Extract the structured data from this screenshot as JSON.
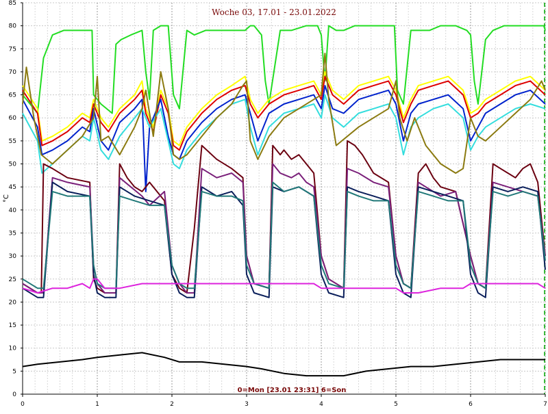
{
  "chart_data": {
    "type": "line",
    "title": "Woche 03, 17.01 - 23.01.2022",
    "footer": "0=Mon [23.01 23:31] 6=Son",
    "ylabel": "°C",
    "xlim": [
      0,
      7
    ],
    "ylim": [
      0,
      85
    ],
    "x_ticks": [
      "0",
      "1",
      "2",
      "3",
      "4",
      "5",
      "6",
      "7"
    ],
    "y_ticks": [
      "0",
      "5",
      "10",
      "15",
      "20",
      "25",
      "30",
      "35",
      "40",
      "45",
      "50",
      "55",
      "60",
      "65",
      "70",
      "75",
      "80",
      "85"
    ],
    "grid": true,
    "end_marker_x": 7,
    "series": [
      {
        "color": "#22dd22",
        "x": [
          0,
          0.1,
          0.2,
          0.28,
          0.4,
          0.55,
          0.7,
          0.85,
          0.93,
          0.95,
          1.05,
          1.2,
          1.25,
          1.32,
          1.45,
          1.6,
          1.65,
          1.7,
          1.75,
          1.85,
          1.95,
          2.02,
          2.1,
          2.2,
          2.3,
          2.45,
          2.6,
          2.8,
          2.98,
          3.05,
          3.1,
          3.2,
          3.25,
          3.3,
          3.45,
          3.6,
          3.8,
          3.95,
          4.0,
          4.05,
          4.1,
          4.2,
          4.3,
          4.45,
          4.6,
          4.8,
          4.98,
          5.02,
          5.1,
          5.2,
          5.3,
          5.45,
          5.6,
          5.8,
          5.95,
          6.0,
          6.05,
          6.1,
          6.2,
          6.3,
          6.45,
          6.6,
          6.8,
          6.98,
          7.0
        ],
        "values": [
          65,
          63,
          61,
          73,
          78,
          79,
          79,
          79,
          79,
          65,
          63,
          61,
          76,
          77,
          78,
          79,
          70,
          64,
          79,
          80,
          80,
          65,
          62,
          79,
          78,
          79,
          79,
          79,
          79,
          80,
          80,
          78,
          68,
          63,
          79,
          79,
          80,
          80,
          78,
          68,
          80,
          79,
          79,
          80,
          80,
          80,
          80,
          66,
          63,
          79,
          79,
          79,
          80,
          80,
          79,
          78,
          68,
          63,
          77,
          79,
          80,
          80,
          80,
          80,
          79
        ]
      },
      {
        "color": "#ffff00",
        "x": [
          0,
          0.2,
          0.26,
          0.4,
          0.6,
          0.8,
          0.9,
          0.95,
          1.05,
          1.15,
          1.3,
          1.5,
          1.6,
          1.65,
          1.75,
          1.85,
          1.95,
          2.02,
          2.1,
          2.2,
          2.4,
          2.6,
          2.8,
          2.98,
          3.05,
          3.15,
          3.3,
          3.5,
          3.7,
          3.9,
          4.0,
          4.05,
          4.15,
          4.3,
          4.5,
          4.7,
          4.9,
          5.0,
          5.1,
          5.2,
          5.3,
          5.5,
          5.7,
          5.9,
          6.0,
          6.1,
          6.2,
          6.4,
          6.6,
          6.8,
          7.0
        ],
        "values": [
          67,
          62,
          55,
          56,
          58,
          61,
          60,
          64,
          60,
          58,
          62,
          65,
          68,
          62,
          58,
          66,
          62,
          55,
          54,
          58,
          62,
          65,
          67,
          69,
          64,
          61,
          64,
          66,
          67,
          68,
          65,
          70,
          66,
          64,
          67,
          68,
          69,
          66,
          60,
          64,
          67,
          68,
          69,
          66,
          61,
          62,
          64,
          66,
          68,
          69,
          66
        ]
      },
      {
        "color": "#dd0000",
        "x": [
          0,
          0.2,
          0.26,
          0.4,
          0.6,
          0.8,
          0.9,
          0.95,
          1.05,
          1.15,
          1.3,
          1.5,
          1.6,
          1.65,
          1.75,
          1.85,
          1.95,
          2.02,
          2.1,
          2.2,
          2.4,
          2.6,
          2.8,
          2.98,
          3.05,
          3.15,
          3.3,
          3.5,
          3.7,
          3.9,
          4.0,
          4.05,
          4.15,
          4.3,
          4.5,
          4.7,
          4.9,
          5.0,
          5.1,
          5.2,
          5.3,
          5.5,
          5.7,
          5.9,
          6.0,
          6.1,
          6.2,
          6.4,
          6.6,
          6.8,
          7.0
        ],
        "values": [
          66,
          61,
          54,
          55,
          57,
          60,
          59,
          63,
          59,
          57,
          61,
          64,
          66,
          61,
          57,
          65,
          61,
          54,
          53,
          57,
          61,
          64,
          66,
          67,
          63,
          60,
          63,
          65,
          66,
          67,
          64,
          69,
          65,
          63,
          66,
          67,
          68,
          65,
          59,
          63,
          66,
          67,
          68,
          65,
          60,
          61,
          63,
          65,
          67,
          68,
          65
        ]
      },
      {
        "color": "#0022cc",
        "x": [
          0,
          0.2,
          0.26,
          0.4,
          0.6,
          0.8,
          0.9,
          0.95,
          1.05,
          1.15,
          1.3,
          1.5,
          1.6,
          1.65,
          1.7,
          1.75,
          1.85,
          1.95,
          2.02,
          2.1,
          2.2,
          2.4,
          2.6,
          2.8,
          2.98,
          3.05,
          3.15,
          3.3,
          3.5,
          3.7,
          3.9,
          4.0,
          4.05,
          4.15,
          4.3,
          4.5,
          4.7,
          4.9,
          5.0,
          5.1,
          5.2,
          5.3,
          5.5,
          5.7,
          5.9,
          6.0,
          6.1,
          6.2,
          6.4,
          6.6,
          6.8,
          7.0
        ],
        "values": [
          64,
          58,
          52,
          53,
          55,
          58,
          57,
          62,
          55,
          53,
          59,
          62,
          64,
          44,
          58,
          60,
          64,
          56,
          52,
          51,
          55,
          59,
          62,
          64,
          65,
          61,
          55,
          61,
          63,
          64,
          65,
          62,
          67,
          62,
          61,
          64,
          65,
          66,
          63,
          55,
          61,
          63,
          64,
          65,
          62,
          55,
          58,
          61,
          63,
          65,
          66,
          63
        ]
      },
      {
        "color": "#33dddd",
        "x": [
          0,
          0.2,
          0.26,
          0.4,
          0.6,
          0.8,
          0.9,
          0.95,
          1.05,
          1.15,
          1.3,
          1.5,
          1.6,
          1.7,
          1.85,
          1.95,
          2.02,
          2.1,
          2.2,
          2.4,
          2.6,
          2.8,
          2.98,
          3.05,
          3.15,
          3.3,
          3.5,
          3.7,
          3.9,
          4.0,
          4.05,
          4.15,
          4.3,
          4.5,
          4.7,
          4.9,
          5.0,
          5.1,
          5.2,
          5.3,
          5.5,
          5.7,
          5.9,
          6.0,
          6.1,
          6.2,
          6.4,
          6.6,
          6.8,
          7.0
        ],
        "values": [
          61,
          55,
          48,
          50,
          53,
          56,
          55,
          60,
          53,
          51,
          56,
          60,
          62,
          58,
          62,
          55,
          50,
          49,
          53,
          57,
          60,
          63,
          64,
          58,
          52,
          58,
          61,
          62,
          63,
          60,
          65,
          60,
          58,
          61,
          62,
          63,
          60,
          52,
          58,
          60,
          62,
          63,
          60,
          53,
          56,
          58,
          60,
          62,
          63,
          62
        ]
      },
      {
        "color": "#8b7a10",
        "x": [
          0,
          0.05,
          0.15,
          0.25,
          0.4,
          0.6,
          0.8,
          0.95,
          1.0,
          1.05,
          1.15,
          1.3,
          1.5,
          1.6,
          1.65,
          1.75,
          1.85,
          1.95,
          2.02,
          2.1,
          2.2,
          2.4,
          2.6,
          2.8,
          2.95,
          3.0,
          3.05,
          3.15,
          3.3,
          3.5,
          3.7,
          3.9,
          4.0,
          4.05,
          4.1,
          4.2,
          4.35,
          4.5,
          4.7,
          4.9,
          5.0,
          5.05,
          5.15,
          5.25,
          5.4,
          5.6,
          5.8,
          5.9,
          6.0,
          6.1,
          6.2,
          6.4,
          6.6,
          6.8,
          6.95,
          7.0
        ],
        "values": [
          63,
          71,
          60,
          52,
          50,
          53,
          56,
          60,
          69,
          55,
          56,
          52,
          58,
          62,
          66,
          56,
          70,
          62,
          52,
          51,
          52,
          56,
          60,
          63,
          67,
          68,
          55,
          51,
          56,
          60,
          62,
          64,
          65,
          74,
          64,
          54,
          56,
          58,
          60,
          62,
          68,
          60,
          55,
          60,
          54,
          50,
          48,
          49,
          60,
          56,
          55,
          58,
          61,
          64,
          68,
          66
        ]
      },
      {
        "color": "#6b0010",
        "x": [
          0,
          0.2,
          0.25,
          0.28,
          0.4,
          0.6,
          0.9,
          0.95,
          1.0,
          1.1,
          1.25,
          1.3,
          1.4,
          1.5,
          1.6,
          1.7,
          1.9,
          2.0,
          2.1,
          2.2,
          2.3,
          2.4,
          2.6,
          2.8,
          2.95,
          3.0,
          3.1,
          3.3,
          3.35,
          3.45,
          3.5,
          3.6,
          3.7,
          3.8,
          3.9,
          4.0,
          4.1,
          4.3,
          4.35,
          4.45,
          4.55,
          4.7,
          4.9,
          5.0,
          5.1,
          5.2,
          5.3,
          5.4,
          5.5,
          5.6,
          5.8,
          6.0,
          6.1,
          6.2,
          6.3,
          6.4,
          6.5,
          6.6,
          6.7,
          6.8,
          6.9,
          7.0
        ],
        "values": [
          24,
          22,
          22,
          50,
          49,
          47,
          46,
          25,
          23,
          22,
          22,
          50,
          47,
          45,
          44,
          46,
          42,
          26,
          23,
          22,
          36,
          54,
          51,
          49,
          47,
          30,
          24,
          23,
          54,
          52,
          53,
          51,
          52,
          50,
          48,
          30,
          25,
          23,
          55,
          54,
          52,
          48,
          46,
          30,
          24,
          23,
          48,
          50,
          47,
          45,
          44,
          30,
          24,
          23,
          50,
          49,
          48,
          47,
          49,
          50,
          46,
          30
        ]
      },
      {
        "color": "#7a207a",
        "x": [
          0,
          0.2,
          0.28,
          0.4,
          0.6,
          0.9,
          0.95,
          1.0,
          1.1,
          1.25,
          1.3,
          1.45,
          1.6,
          1.7,
          1.9,
          2.0,
          2.1,
          2.2,
          2.3,
          2.4,
          2.6,
          2.8,
          2.95,
          3.0,
          3.1,
          3.3,
          3.35,
          3.45,
          3.6,
          3.7,
          3.8,
          3.9,
          4.0,
          4.1,
          4.3,
          4.35,
          4.5,
          4.7,
          4.9,
          5.0,
          5.1,
          5.2,
          5.3,
          5.4,
          5.6,
          5.8,
          6.0,
          6.1,
          6.2,
          6.3,
          6.5,
          6.7,
          6.9,
          7.0
        ],
        "values": [
          24,
          22,
          22,
          47,
          46,
          45,
          28,
          24,
          22,
          22,
          47,
          45,
          43,
          41,
          44,
          28,
          24,
          22,
          22,
          49,
          47,
          48,
          46,
          30,
          24,
          23,
          50,
          48,
          47,
          48,
          46,
          45,
          30,
          25,
          23,
          49,
          48,
          46,
          45,
          30,
          24,
          23,
          46,
          45,
          43,
          44,
          30,
          24,
          23,
          46,
          45,
          44,
          43,
          30
        ]
      },
      {
        "color": "#0a1e5a",
        "x": [
          0,
          0.2,
          0.28,
          0.4,
          0.6,
          0.9,
          0.95,
          1.0,
          1.1,
          1.25,
          1.3,
          1.5,
          1.7,
          1.9,
          2.0,
          2.1,
          2.2,
          2.3,
          2.4,
          2.6,
          2.8,
          2.95,
          3.0,
          3.1,
          3.3,
          3.35,
          3.5,
          3.7,
          3.9,
          4.0,
          4.1,
          4.3,
          4.35,
          4.5,
          4.7,
          4.9,
          5.0,
          5.1,
          5.2,
          5.3,
          5.5,
          5.7,
          5.9,
          6.0,
          6.1,
          6.2,
          6.3,
          6.5,
          6.7,
          6.9,
          7.0
        ],
        "values": [
          23,
          21,
          21,
          46,
          44,
          43,
          26,
          22,
          21,
          21,
          45,
          43,
          42,
          41,
          26,
          22,
          21,
          21,
          45,
          43,
          44,
          41,
          26,
          22,
          21,
          45,
          44,
          45,
          43,
          26,
          22,
          21,
          45,
          44,
          43,
          42,
          26,
          22,
          21,
          45,
          44,
          43,
          42,
          26,
          22,
          21,
          45,
          44,
          45,
          44,
          27
        ]
      },
      {
        "color": "#207878",
        "x": [
          0,
          0.2,
          0.28,
          0.4,
          0.6,
          0.9,
          0.95,
          1.0,
          1.1,
          1.25,
          1.3,
          1.5,
          1.7,
          1.9,
          2.0,
          2.1,
          2.2,
          2.3,
          2.4,
          2.6,
          2.8,
          2.95,
          3.0,
          3.1,
          3.3,
          3.35,
          3.5,
          3.7,
          3.9,
          4.0,
          4.1,
          4.3,
          4.35,
          4.5,
          4.7,
          4.9,
          5.0,
          5.1,
          5.2,
          5.3,
          5.5,
          5.7,
          5.9,
          6.0,
          6.1,
          6.2,
          6.3,
          6.5,
          6.7,
          6.9,
          7.0
        ],
        "values": [
          25,
          23,
          23,
          44,
          43,
          43,
          28,
          24,
          23,
          23,
          43,
          42,
          41,
          41,
          28,
          24,
          23,
          23,
          44,
          43,
          43,
          42,
          28,
          24,
          23,
          46,
          44,
          45,
          43,
          28,
          24,
          23,
          44,
          43,
          42,
          42,
          28,
          24,
          23,
          44,
          43,
          42,
          42,
          28,
          24,
          23,
          44,
          43,
          44,
          43,
          29
        ]
      },
      {
        "color": "#dd22dd",
        "x": [
          0,
          0.2,
          0.4,
          0.6,
          0.8,
          0.9,
          0.95,
          1.0,
          1.1,
          1.3,
          1.6,
          1.9,
          2.0,
          2.1,
          2.3,
          2.6,
          2.9,
          3.0,
          3.1,
          3.3,
          3.6,
          3.9,
          4.0,
          4.1,
          4.3,
          4.6,
          4.9,
          5.0,
          5.1,
          5.3,
          5.6,
          5.9,
          6.0,
          6.1,
          6.3,
          6.6,
          6.9,
          7.0
        ],
        "values": [
          23,
          22,
          23,
          23,
          24,
          23,
          25,
          25,
          23,
          23,
          24,
          24,
          24,
          24,
          24,
          24,
          24,
          24,
          24,
          24,
          24,
          24,
          23,
          23,
          23,
          23,
          23,
          23,
          22,
          22,
          23,
          23,
          24,
          24,
          24,
          24,
          24,
          23
        ]
      },
      {
        "color": "#000000",
        "x": [
          0,
          0.2,
          0.5,
          0.8,
          1.0,
          1.3,
          1.6,
          1.9,
          2.1,
          2.4,
          2.7,
          3.0,
          3.2,
          3.5,
          3.8,
          4.0,
          4.3,
          4.6,
          4.9,
          5.2,
          5.5,
          5.8,
          6.1,
          6.4,
          6.7,
          7.0
        ],
        "values": [
          6,
          6.5,
          7,
          7.5,
          8,
          8.5,
          9,
          8,
          7,
          7,
          6.5,
          6,
          5.5,
          4.5,
          4,
          4,
          4,
          5,
          5.5,
          6,
          6,
          6.5,
          7,
          7.5,
          7.5,
          7.5
        ]
      }
    ]
  }
}
